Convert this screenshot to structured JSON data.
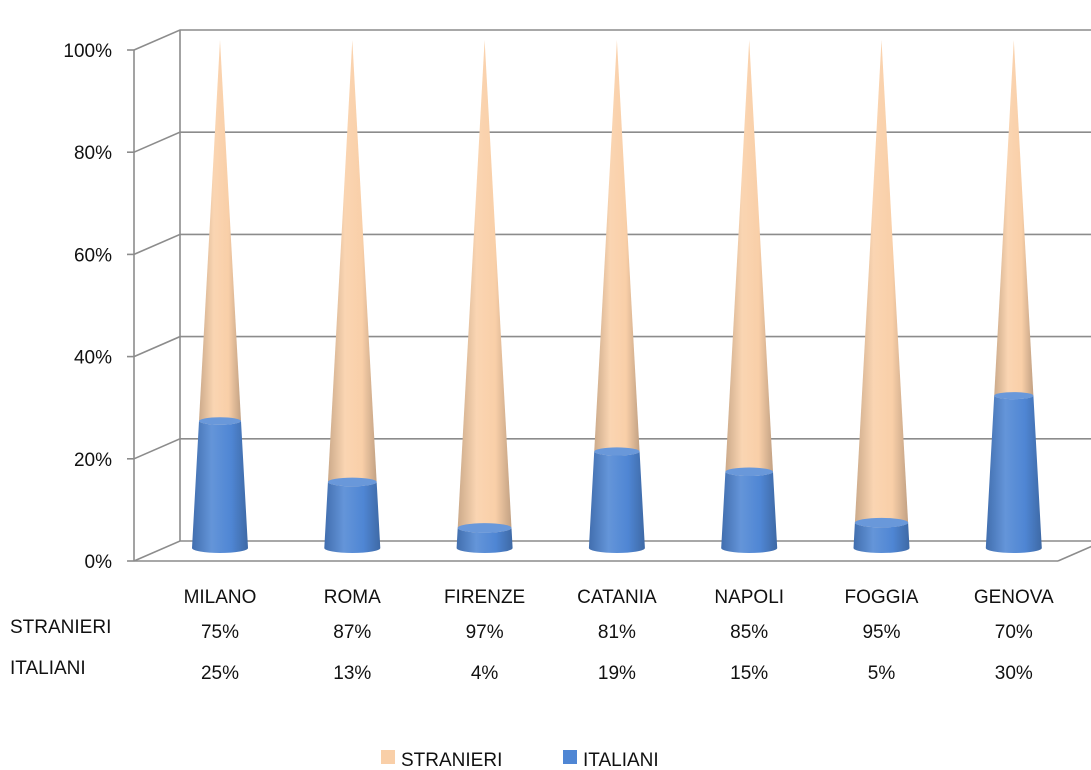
{
  "chart_data": {
    "type": "bar",
    "subtype": "3d-stacked-cone-100",
    "title": "",
    "xlabel": "",
    "ylabel": "",
    "categories": [
      "MILANO",
      "ROMA",
      "FIRENZE",
      "CATANIA",
      "NAPOLI",
      "FOGGIA",
      "GENOVA"
    ],
    "series": [
      {
        "name": "STRANIERI",
        "values": [
          75,
          87,
          97,
          81,
          85,
          95,
          70
        ],
        "labels": [
          "75%",
          "87%",
          "97%",
          "81%",
          "85%",
          "95%",
          "70%"
        ],
        "color": "#F9CFA8"
      },
      {
        "name": "ITALIANI",
        "values": [
          25,
          13,
          4,
          19,
          15,
          5,
          30
        ],
        "labels": [
          "25%",
          "13%",
          "4%",
          "19%",
          "15%",
          "5%",
          "30%"
        ],
        "color": "#4F86D4"
      }
    ],
    "yticks": [
      "0%",
      "20%",
      "40%",
      "60%",
      "80%",
      "100%"
    ],
    "ylim": [
      0,
      100
    ],
    "grid": true,
    "data_table": true,
    "legend": "bottom"
  }
}
